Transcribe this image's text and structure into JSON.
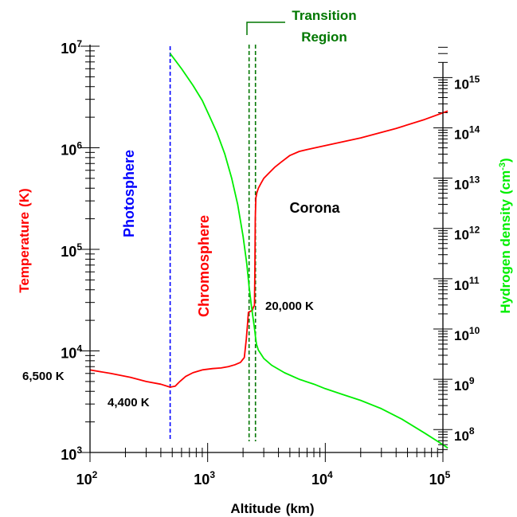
{
  "chart_data": {
    "type": "line",
    "xlabel": "Altitude",
    "xunit": "(km)",
    "x_scale": "log",
    "xlim": [
      100,
      100000
    ],
    "x_ticks": [
      {
        "base": "10",
        "exp": "2"
      },
      {
        "base": "10",
        "exp": "3"
      },
      {
        "base": "10",
        "exp": "4"
      },
      {
        "base": "10",
        "exp": "5"
      }
    ],
    "left_axis": {
      "label": "Temperature",
      "unit": "(K)",
      "scale": "log",
      "ylim": [
        1000,
        10000000
      ],
      "color": "#ff0000",
      "ticks": [
        {
          "base": "10",
          "exp": "3"
        },
        {
          "base": "10",
          "exp": "4"
        },
        {
          "base": "10",
          "exp": "5"
        },
        {
          "base": "10",
          "exp": "6"
        },
        {
          "base": "10",
          "exp": "7"
        }
      ]
    },
    "right_axis": {
      "label": "Hydrogen density",
      "unit_prefix": "(cm",
      "unit_exp": "-3",
      "unit_suffix": ")",
      "scale": "log",
      "ylim": [
        35000000.0,
        4200000000000000.0
      ],
      "color": "#00ee00",
      "ticks": [
        {
          "base": "10",
          "exp": "8"
        },
        {
          "base": "10",
          "exp": "9"
        },
        {
          "base": "10",
          "exp": "10"
        },
        {
          "base": "10",
          "exp": "11"
        },
        {
          "base": "10",
          "exp": "12"
        },
        {
          "base": "10",
          "exp": "13"
        },
        {
          "base": "10",
          "exp": "14"
        },
        {
          "base": "10",
          "exp": "15"
        }
      ]
    },
    "series": [
      {
        "axis": "left",
        "color": "#ff0000",
        "x": [
          100,
          150,
          220,
          300,
          400,
          480,
          530,
          580,
          650,
          750,
          900,
          1100,
          1300,
          1500,
          1700,
          1900,
          2050,
          2130,
          2180,
          2220,
          2300,
          2400,
          2420,
          2450,
          2500,
          2520,
          2540,
          2570,
          2620,
          2700,
          2850,
          3000,
          3300,
          3700,
          4200,
          5000,
          6000,
          7000,
          10000,
          20000,
          40000,
          70000,
          110000
        ],
        "y": [
          6500,
          6000,
          5500,
          5000,
          4700,
          4400,
          4500,
          5000,
          5600,
          6100,
          6500,
          6700,
          6800,
          7000,
          7300,
          7700,
          8600,
          13000,
          18000,
          24000,
          24500,
          25000,
          26000,
          27000,
          28000,
          60000,
          200000,
          320000,
          360000,
          400000,
          450000,
          500000,
          560000,
          640000,
          720000,
          840000,
          920000,
          960000,
          1050000,
          1250000,
          1550000,
          1900000,
          2300000
        ]
      },
      {
        "axis": "right",
        "color": "#00ee00",
        "x": [
          480,
          600,
          750,
          900,
          1050,
          1200,
          1400,
          1600,
          1800,
          2000,
          2150,
          2250,
          2350,
          2420,
          2480,
          2520,
          2550,
          2600,
          2700,
          3000,
          3500,
          4500,
          6000,
          8000,
          10000,
          14000,
          20000,
          30000,
          45000,
          70000,
          100000,
          110000
        ],
        "y": [
          3000000000000000.0,
          1500000000000000.0,
          700000000000000.0,
          350000000000000.0,
          160000000000000.0,
          80000000000000.0,
          30000000000000.0,
          10000000000000.0,
          3000000000000.0,
          700000000000.0,
          200000000000.0,
          70000000000.0,
          30000000000.0,
          18000000000.0,
          12000000000.0,
          9000000000.0,
          7000000000.0,
          5000000000.0,
          3800000000.0,
          2600000000.0,
          1900000000.0,
          1350000000.0,
          1000000000.0,
          800000000.0,
          650000000.0,
          500000000.0,
          380000000.0,
          260000000.0,
          160000000.0,
          85000000.0,
          50000000.0,
          43000000.0
        ]
      }
    ],
    "vlines": [
      {
        "x": 480,
        "color": "#0000ff"
      },
      {
        "x": 2250,
        "color": "#007700"
      },
      {
        "x": 2550,
        "color": "#007700"
      }
    ],
    "annotations": {
      "photosphere": {
        "text": "Photosphere",
        "color": "#0000ff"
      },
      "chromosphere": {
        "text": "Chromosphere",
        "color": "#ff0000"
      },
      "corona": {
        "text": "Corona",
        "color": "#000000"
      },
      "transition_line1": "Transition",
      "transition_line2": "Region",
      "transition_color": "#007700",
      "t_6500": "6,500 K",
      "t_4400": "4,400 K",
      "t_20000": "20,000 K"
    }
  }
}
